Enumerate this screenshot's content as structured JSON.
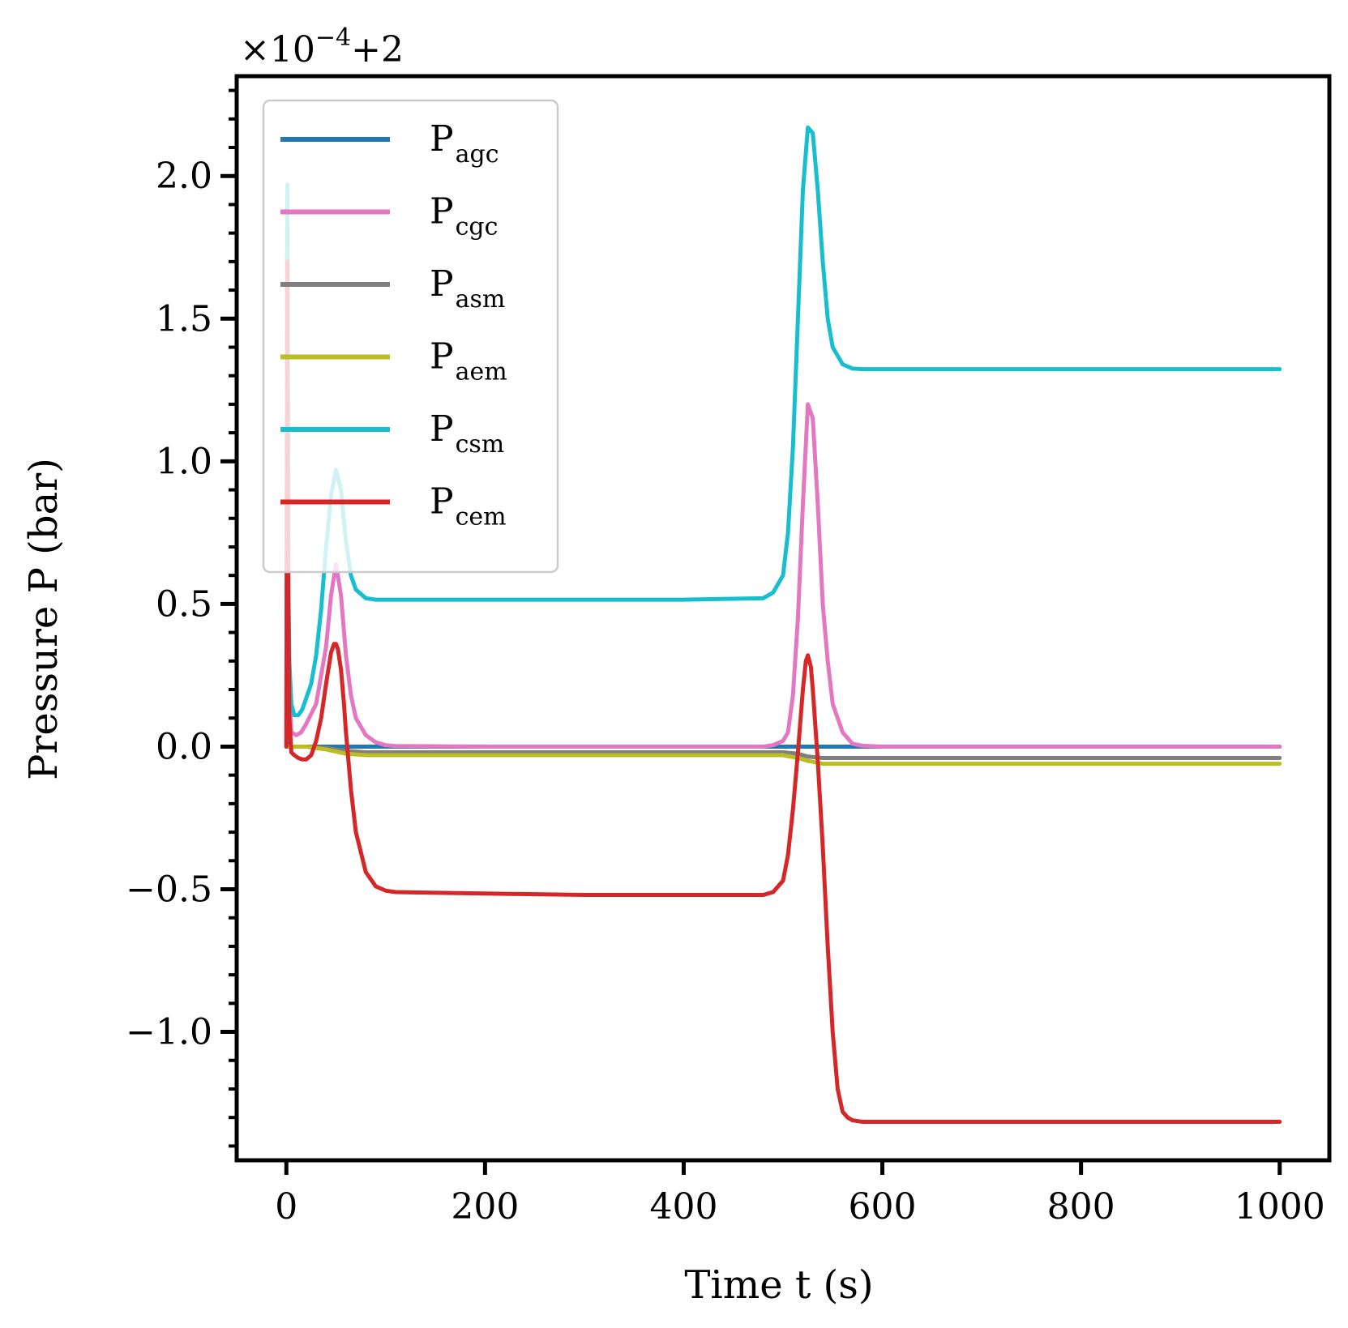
{
  "chart_data": {
    "type": "line",
    "title": "",
    "xlabel": "Time t (s)",
    "ylabel": "Pressure P (bar)",
    "offset_text": {
      "prefix": "×10",
      "exponent": "−4",
      "suffix": "+2"
    },
    "xlim": [
      -50,
      1050
    ],
    "ylim": [
      -1.45,
      2.35
    ],
    "x_ticks": [
      0,
      200,
      400,
      600,
      800,
      1000
    ],
    "x_tick_labels": [
      "0",
      "200",
      "400",
      "600",
      "800",
      "1000"
    ],
    "y_ticks": [
      -1.0,
      -0.5,
      0.0,
      0.5,
      1.0,
      1.5,
      2.0
    ],
    "y_tick_labels": [
      "−1.0",
      "−0.5",
      "0.0",
      "0.5",
      "1.0",
      "1.5",
      "2.0"
    ],
    "y_minor_step": 0.1,
    "legend_position": "upper-left",
    "series": [
      {
        "name": "P_agc",
        "label_main": "P",
        "label_sub": "agc",
        "color": "#1f77b4",
        "x": [
          0,
          1,
          2,
          5,
          10,
          20,
          50,
          100,
          500,
          550,
          1000
        ],
        "y": [
          0.0,
          0.03,
          0.0,
          0.0,
          0.0,
          0.0,
          0.0,
          0.0,
          0.0,
          0.0,
          0.0
        ]
      },
      {
        "name": "P_cgc",
        "label_main": "P",
        "label_sub": "cgc",
        "color": "#e377c2",
        "x": [
          0,
          1,
          2,
          3,
          5,
          10,
          15,
          20,
          30,
          40,
          45,
          50,
          55,
          60,
          65,
          70,
          80,
          90,
          100,
          110,
          200,
          300,
          400,
          480,
          490,
          500,
          505,
          510,
          515,
          520,
          525,
          530,
          535,
          540,
          545,
          550,
          560,
          570,
          580,
          600,
          1000
        ],
        "y": [
          0.0,
          1.9,
          0.5,
          0.2,
          0.05,
          0.04,
          0.05,
          0.08,
          0.15,
          0.35,
          0.53,
          0.64,
          0.53,
          0.32,
          0.18,
          0.1,
          0.04,
          0.015,
          0.005,
          0.002,
          0.0,
          0.0,
          0.0,
          0.0,
          0.005,
          0.02,
          0.05,
          0.18,
          0.45,
          0.85,
          1.2,
          1.15,
          0.85,
          0.5,
          0.3,
          0.15,
          0.05,
          0.01,
          0.003,
          0.0,
          0.0
        ]
      },
      {
        "name": "P_asm",
        "label_main": "P",
        "label_sub": "asm",
        "color": "#7f7f7f",
        "x": [
          0,
          20,
          40,
          60,
          80,
          100,
          200,
          400,
          500,
          515,
          525,
          540,
          560,
          700,
          1000
        ],
        "y": [
          0.0,
          0.0,
          -0.005,
          -0.015,
          -0.02,
          -0.02,
          -0.02,
          -0.02,
          -0.02,
          -0.025,
          -0.035,
          -0.04,
          -0.04,
          -0.04,
          -0.04
        ]
      },
      {
        "name": "P_aem",
        "label_main": "P",
        "label_sub": "aem",
        "color": "#bcbd22",
        "x": [
          0,
          20,
          40,
          60,
          80,
          100,
          200,
          400,
          500,
          515,
          525,
          540,
          560,
          700,
          1000
        ],
        "y": [
          0.0,
          0.0,
          -0.01,
          -0.025,
          -0.03,
          -0.03,
          -0.03,
          -0.03,
          -0.03,
          -0.04,
          -0.05,
          -0.06,
          -0.06,
          -0.06,
          -0.06
        ]
      },
      {
        "name": "P_csm",
        "label_main": "P",
        "label_sub": "csm",
        "color": "#17becf",
        "x": [
          0,
          1,
          2,
          3,
          5,
          8,
          12,
          16,
          20,
          25,
          30,
          35,
          40,
          45,
          50,
          55,
          60,
          65,
          70,
          80,
          90,
          100,
          200,
          300,
          400,
          480,
          490,
          500,
          505,
          510,
          515,
          520,
          525,
          530,
          535,
          540,
          545,
          550,
          560,
          570,
          580,
          600,
          1000
        ],
        "y": [
          0.0,
          1.97,
          0.6,
          0.3,
          0.15,
          0.11,
          0.11,
          0.13,
          0.17,
          0.22,
          0.32,
          0.48,
          0.7,
          0.88,
          0.97,
          0.9,
          0.72,
          0.6,
          0.55,
          0.52,
          0.515,
          0.515,
          0.515,
          0.515,
          0.515,
          0.52,
          0.54,
          0.6,
          0.75,
          1.05,
          1.5,
          1.95,
          2.17,
          2.15,
          1.95,
          1.7,
          1.5,
          1.4,
          1.34,
          1.325,
          1.323,
          1.323,
          1.323
        ]
      },
      {
        "name": "P_cem",
        "label_main": "P",
        "label_sub": "cem",
        "color": "#d62728",
        "x": [
          0,
          1,
          2,
          3,
          5,
          8,
          12,
          16,
          20,
          25,
          30,
          35,
          40,
          45,
          48,
          50,
          52,
          55,
          58,
          60,
          65,
          70,
          80,
          90,
          100,
          110,
          200,
          300,
          400,
          480,
          490,
          500,
          505,
          510,
          515,
          520,
          523,
          525,
          528,
          530,
          535,
          540,
          545,
          550,
          555,
          560,
          565,
          570,
          580,
          600,
          700,
          1000
        ],
        "y": [
          0.0,
          1.7,
          0.5,
          0.1,
          -0.02,
          -0.03,
          -0.04,
          -0.045,
          -0.045,
          -0.03,
          0.02,
          0.1,
          0.22,
          0.33,
          0.36,
          0.36,
          0.34,
          0.27,
          0.15,
          0.05,
          -0.15,
          -0.3,
          -0.44,
          -0.49,
          -0.505,
          -0.51,
          -0.515,
          -0.52,
          -0.52,
          -0.52,
          -0.51,
          -0.47,
          -0.38,
          -0.22,
          -0.02,
          0.2,
          0.3,
          0.32,
          0.28,
          0.2,
          -0.05,
          -0.35,
          -0.7,
          -1.0,
          -1.2,
          -1.28,
          -1.3,
          -1.31,
          -1.315,
          -1.315,
          -1.315,
          -1.315
        ]
      }
    ]
  }
}
